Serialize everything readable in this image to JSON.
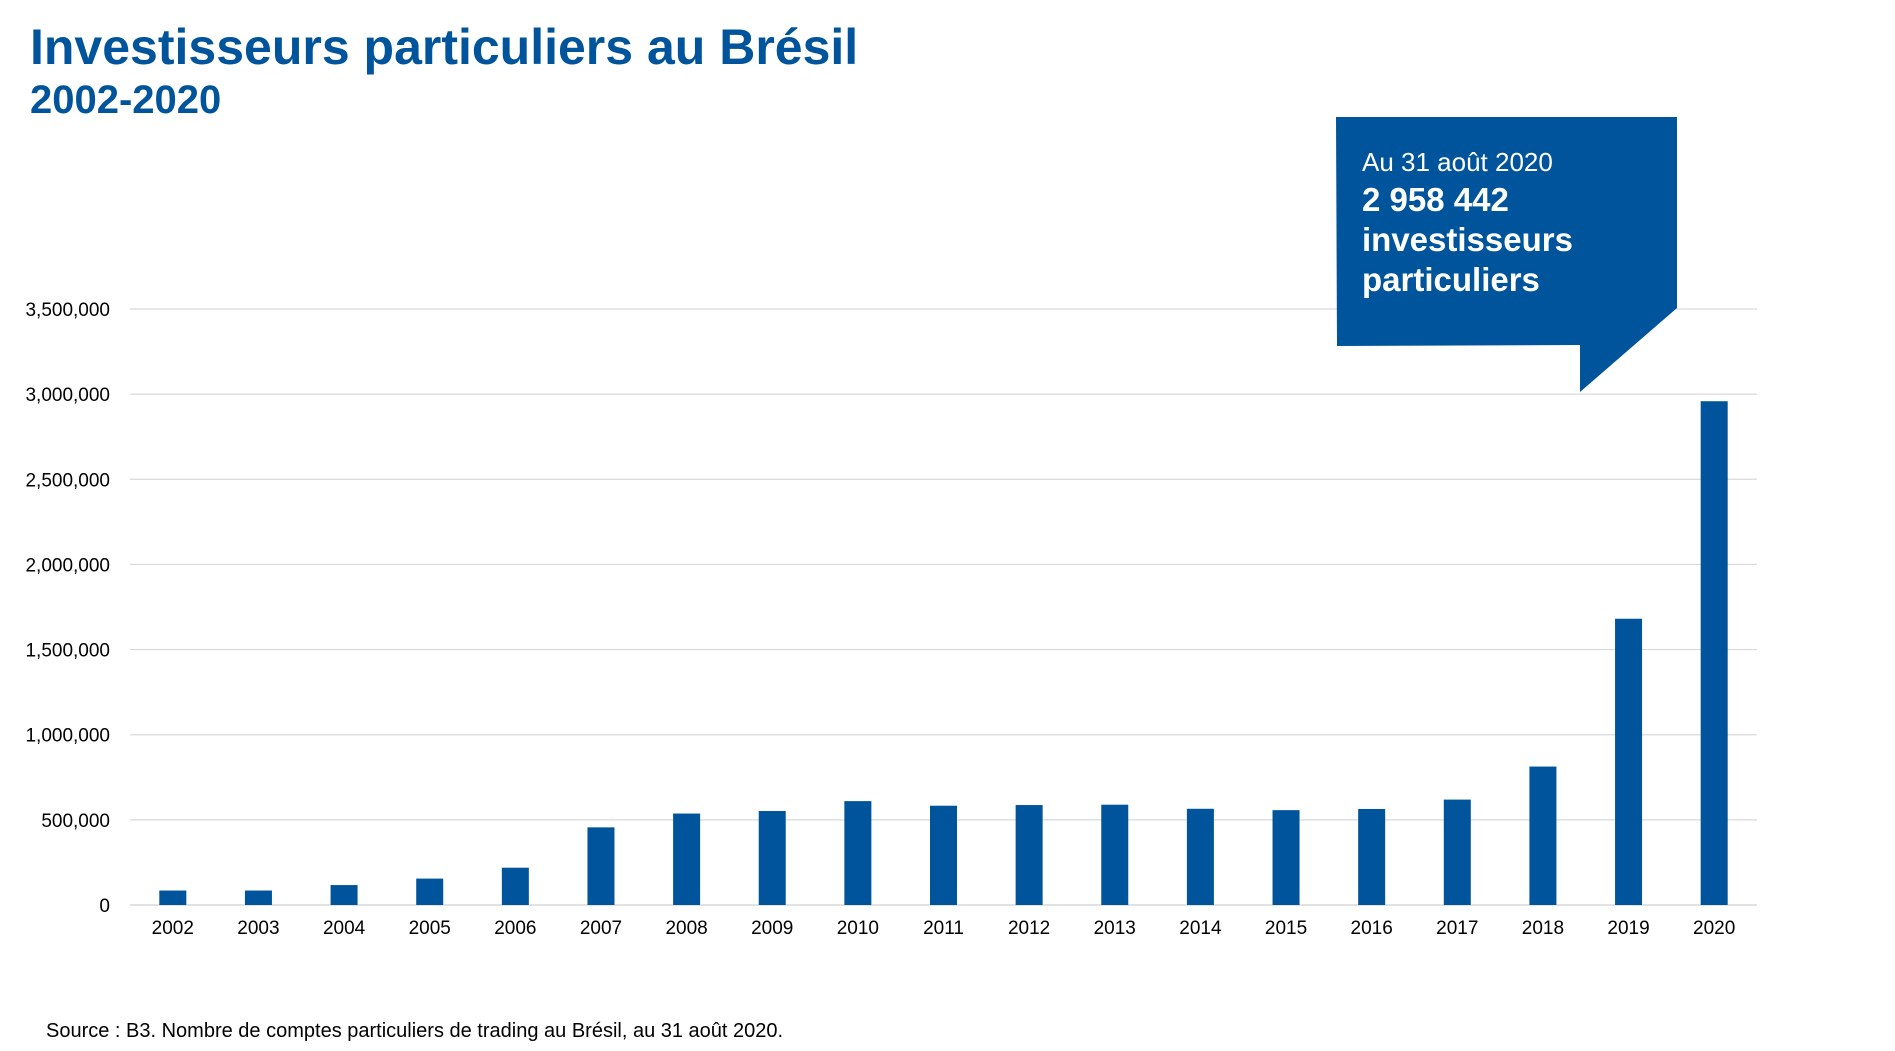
{
  "chart_data": {
    "type": "bar",
    "title": "Investisseurs particuliers au Brésil",
    "subtitle": "2002-2020",
    "categories": [
      "2002",
      "2003",
      "2004",
      "2005",
      "2006",
      "2007",
      "2008",
      "2009",
      "2010",
      "2011",
      "2012",
      "2013",
      "2014",
      "2015",
      "2016",
      "2017",
      "2018",
      "2019",
      "2020"
    ],
    "series": [
      {
        "values": [
          85000,
          85000,
          117000,
          155000,
          219000,
          456000,
          537000,
          552000,
          610000,
          583000,
          587000,
          589000,
          565000,
          557000,
          564000,
          619000,
          813000,
          1681000,
          2958442
        ]
      }
    ],
    "ylim": [
      0,
      3500000
    ],
    "yticks": [
      0,
      500000,
      1000000,
      1500000,
      2000000,
      2500000,
      3000000,
      3500000
    ],
    "ytick_labels": [
      "0",
      "500,000",
      "1,000,000",
      "1,500,000",
      "2,000,000",
      "2,500,000",
      "3,000,000",
      "3,500,000"
    ],
    "grid": true,
    "bar_color": "#00549b",
    "grid_color": "#d9d9d9"
  },
  "callout": {
    "date": "Au 31 août 2020",
    "number": "2 958 442",
    "text": "investisseurs particuliers",
    "color": "#00549b"
  },
  "source": "Source : B3. Nombre de comptes particuliers de trading au Brésil, au 31 août 2020."
}
